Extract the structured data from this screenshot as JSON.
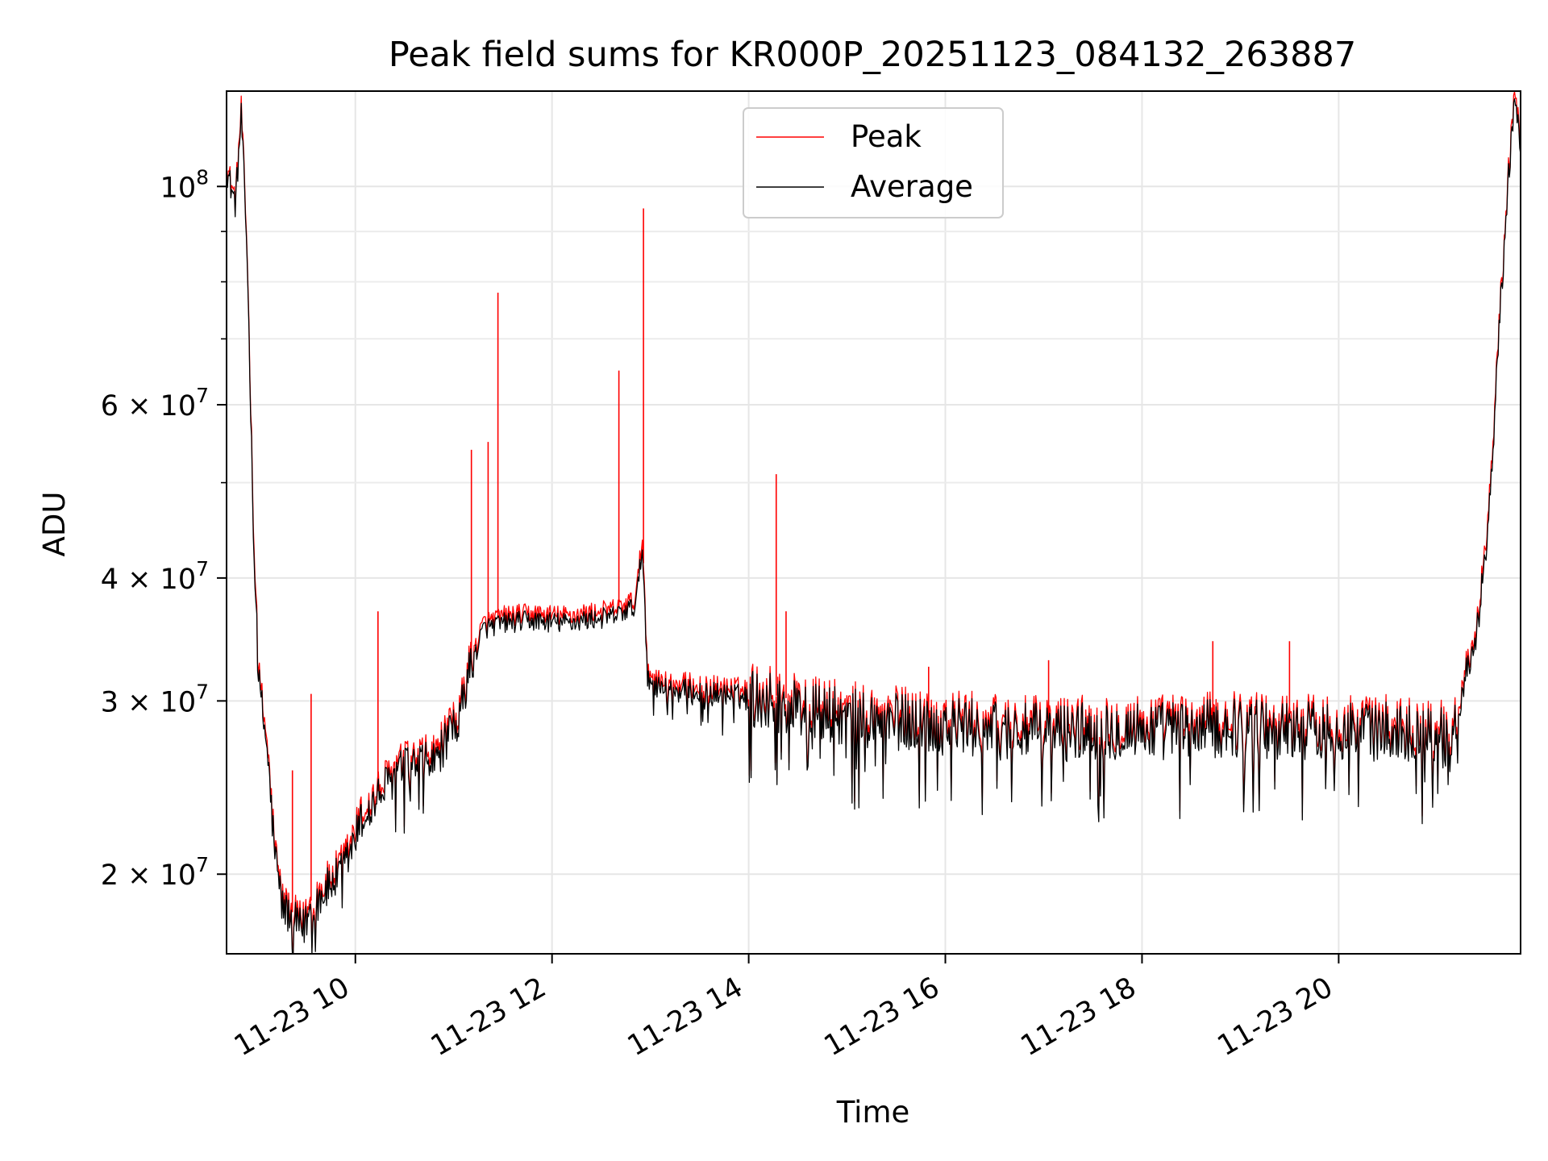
{
  "chart_data": {
    "type": "line",
    "title": "Peak field sums for KR000P_20251123_084132_263887",
    "xlabel": "Time",
    "ylabel": "ADU",
    "yscale": "log",
    "xlim_hours": [
      8.69,
      21.85
    ],
    "ylim": [
      16600000,
      125000000
    ],
    "x_ticks": [
      {
        "hours": 10,
        "label": "11-23 10"
      },
      {
        "hours": 12,
        "label": "11-23 12"
      },
      {
        "hours": 14,
        "label": "11-23 14"
      },
      {
        "hours": 16,
        "label": "11-23 16"
      },
      {
        "hours": 18,
        "label": "11-23 18"
      },
      {
        "hours": 20,
        "label": "11-23 20"
      }
    ],
    "y_ticks": [
      {
        "value": 20000000,
        "base": "2 × 10",
        "exp": "7"
      },
      {
        "value": 30000000,
        "base": "3 × 10",
        "exp": "7"
      },
      {
        "value": 40000000,
        "base": "4 × 10",
        "exp": "7"
      },
      {
        "value": 60000000,
        "base": "6 × 10",
        "exp": "7"
      },
      {
        "value": 100000000,
        "base": "10",
        "exp": "8"
      }
    ],
    "y_minor_ticks": [
      50000000,
      70000000,
      80000000,
      90000000
    ],
    "grid": true,
    "legend": {
      "position": "top-center",
      "entries": [
        "Peak",
        "Average"
      ]
    },
    "series": [
      {
        "name": "Average",
        "color": "#000000",
        "points": [
          [
            8.69,
            104000000
          ],
          [
            8.78,
            96000000
          ],
          [
            8.84,
            118000000
          ],
          [
            8.9,
            85000000
          ],
          [
            8.97,
            42000000
          ],
          [
            9.02,
            31000000
          ],
          [
            9.1,
            27000000
          ],
          [
            9.18,
            21000000
          ],
          [
            9.26,
            18500000
          ],
          [
            9.36,
            18000000
          ],
          [
            9.46,
            17500000
          ],
          [
            9.55,
            18500000
          ],
          [
            9.65,
            19000000
          ],
          [
            9.75,
            19500000
          ],
          [
            9.85,
            20000000
          ],
          [
            9.95,
            21000000
          ],
          [
            10.05,
            22500000
          ],
          [
            10.15,
            23200000
          ],
          [
            10.3,
            24500000
          ],
          [
            10.45,
            25500000
          ],
          [
            10.6,
            25800000
          ],
          [
            10.8,
            26000000
          ],
          [
            10.95,
            27500000
          ],
          [
            11.05,
            28500000
          ],
          [
            11.15,
            32000000
          ],
          [
            11.22,
            33500000
          ],
          [
            11.3,
            35500000
          ],
          [
            11.5,
            36000000
          ],
          [
            11.8,
            36200000
          ],
          [
            12.1,
            36000000
          ],
          [
            12.4,
            36300000
          ],
          [
            12.6,
            36500000
          ],
          [
            12.75,
            37000000
          ],
          [
            12.85,
            37500000
          ],
          [
            12.92,
            43000000
          ],
          [
            12.97,
            32000000
          ],
          [
            13.05,
            31000000
          ],
          [
            13.3,
            30700000
          ],
          [
            13.6,
            30500000
          ],
          [
            13.9,
            30300000
          ],
          [
            14.2,
            30000000
          ],
          [
            14.5,
            29500000
          ],
          [
            14.8,
            29000000
          ],
          [
            15.2,
            28700000
          ],
          [
            15.6,
            28500000
          ],
          [
            16.0,
            28300000
          ],
          [
            16.5,
            28000000
          ],
          [
            17.0,
            27800000
          ],
          [
            17.5,
            28000000
          ],
          [
            18.0,
            28000000
          ],
          [
            18.5,
            28000000
          ],
          [
            19.0,
            28200000
          ],
          [
            19.5,
            28000000
          ],
          [
            20.0,
            28000000
          ],
          [
            20.5,
            27900000
          ],
          [
            21.0,
            27800000
          ],
          [
            21.15,
            27000000
          ],
          [
            21.3,
            32000000
          ],
          [
            21.42,
            36000000
          ],
          [
            21.5,
            43000000
          ],
          [
            21.58,
            56000000
          ],
          [
            21.64,
            75000000
          ],
          [
            21.7,
            92000000
          ],
          [
            21.76,
            115000000
          ],
          [
            21.8,
            120000000
          ],
          [
            21.85,
            112000000
          ]
        ]
      },
      {
        "name": "Peak",
        "color": "#ff0000",
        "points": [
          [
            8.69,
            105000000
          ],
          [
            8.78,
            97000000
          ],
          [
            8.84,
            120000000
          ],
          [
            8.9,
            86000000
          ],
          [
            8.97,
            43000000
          ],
          [
            9.02,
            31500000
          ],
          [
            9.1,
            27500000
          ],
          [
            9.18,
            21300000
          ],
          [
            9.26,
            18800000
          ],
          [
            9.36,
            18300000
          ],
          [
            9.46,
            17800000
          ],
          [
            9.55,
            18800000
          ],
          [
            9.65,
            19300000
          ],
          [
            9.75,
            19800000
          ],
          [
            9.85,
            20400000
          ],
          [
            9.95,
            21400000
          ],
          [
            10.05,
            22900000
          ],
          [
            10.15,
            23600000
          ],
          [
            10.3,
            24900000
          ],
          [
            10.45,
            25900000
          ],
          [
            10.6,
            26200000
          ],
          [
            10.8,
            26500000
          ],
          [
            10.95,
            28000000
          ],
          [
            11.05,
            29000000
          ],
          [
            11.15,
            32500000
          ],
          [
            11.22,
            34000000
          ],
          [
            11.3,
            36000000
          ],
          [
            11.5,
            36600000
          ],
          [
            11.8,
            36800000
          ],
          [
            12.1,
            36600000
          ],
          [
            12.4,
            36900000
          ],
          [
            12.6,
            37100000
          ],
          [
            12.75,
            37600000
          ],
          [
            12.85,
            38100000
          ],
          [
            12.92,
            44000000
          ],
          [
            12.97,
            32500000
          ],
          [
            13.05,
            31500000
          ],
          [
            13.3,
            31200000
          ],
          [
            13.6,
            31000000
          ],
          [
            13.9,
            30800000
          ],
          [
            14.2,
            30500000
          ],
          [
            14.5,
            30000000
          ],
          [
            14.8,
            29500000
          ],
          [
            15.2,
            29200000
          ],
          [
            15.6,
            29000000
          ],
          [
            16.0,
            28800000
          ],
          [
            16.5,
            28500000
          ],
          [
            17.0,
            28300000
          ],
          [
            17.5,
            28500000
          ],
          [
            18.0,
            28500000
          ],
          [
            18.5,
            28500000
          ],
          [
            19.0,
            28700000
          ],
          [
            19.5,
            28500000
          ],
          [
            20.0,
            28500000
          ],
          [
            20.5,
            28400000
          ],
          [
            21.0,
            28300000
          ],
          [
            21.15,
            27500000
          ],
          [
            21.3,
            32500000
          ],
          [
            21.42,
            36500000
          ],
          [
            21.5,
            44000000
          ],
          [
            21.58,
            57000000
          ],
          [
            21.64,
            76000000
          ],
          [
            21.7,
            93000000
          ],
          [
            21.76,
            117000000
          ],
          [
            21.8,
            122000000
          ],
          [
            21.85,
            114000000
          ]
        ],
        "spikes": [
          [
            9.36,
            25500000
          ],
          [
            9.55,
            30500000
          ],
          [
            10.23,
            37000000
          ],
          [
            11.18,
            54000000
          ],
          [
            11.35,
            55000000
          ],
          [
            11.45,
            78000000
          ],
          [
            12.68,
            65000000
          ],
          [
            12.93,
            95000000
          ],
          [
            14.28,
            51000000
          ],
          [
            14.38,
            37000000
          ],
          [
            15.83,
            32500000
          ],
          [
            17.05,
            33000000
          ],
          [
            18.72,
            34500000
          ],
          [
            19.5,
            34500000
          ]
        ]
      }
    ]
  }
}
